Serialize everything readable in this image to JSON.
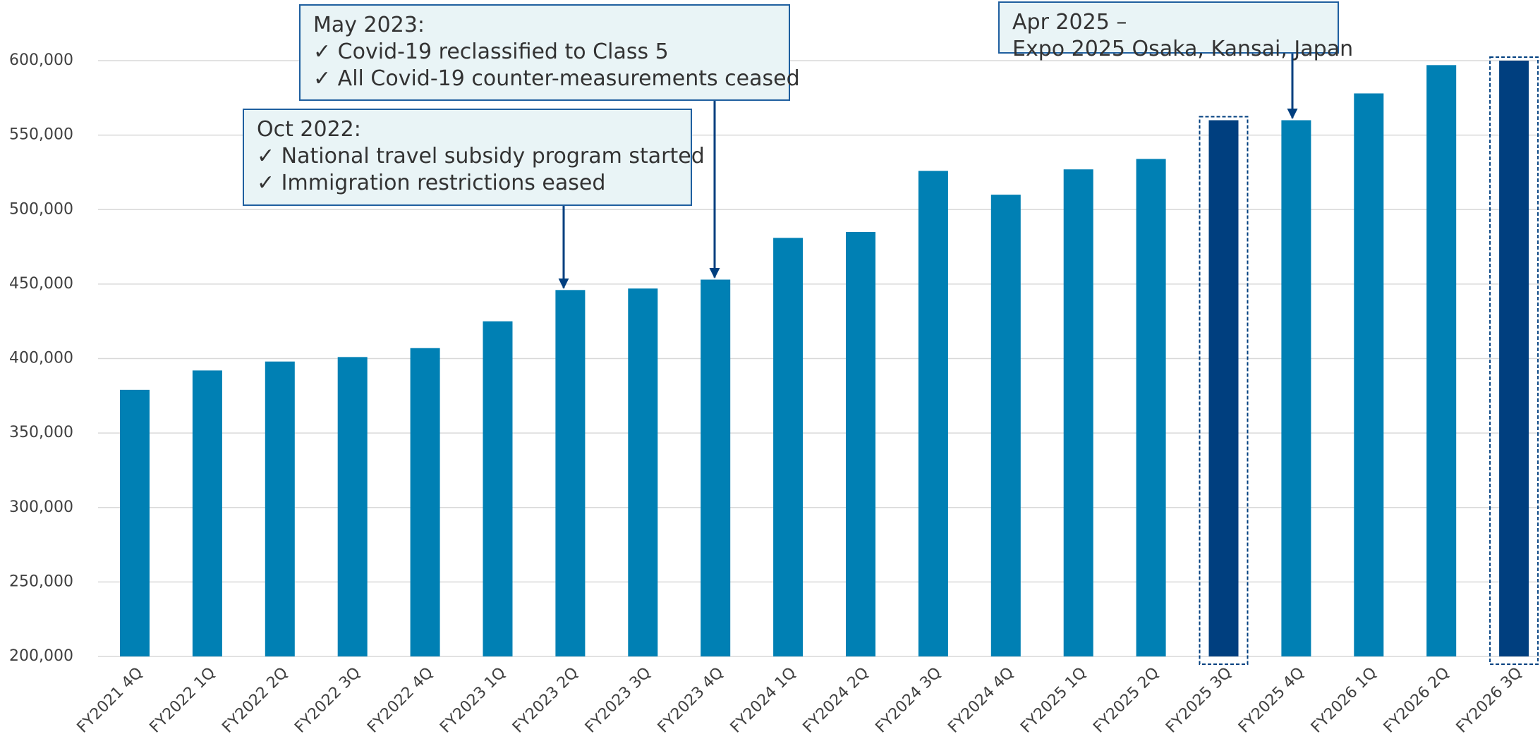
{
  "chart_data": {
    "type": "bar",
    "categories": [
      "FY2021 4Q",
      "FY2022 1Q",
      "FY2022 2Q",
      "FY2022 3Q",
      "FY2022 4Q",
      "FY2023 1Q",
      "FY2023 2Q",
      "FY2023 3Q",
      "FY2023 4Q",
      "FY2024 1Q",
      "FY2024 2Q",
      "FY2024 3Q",
      "FY2024 4Q",
      "FY2025 1Q",
      "FY2025 2Q",
      "FY2025 3Q",
      "FY2025 4Q",
      "FY2026 1Q",
      "FY2026 2Q",
      "FY2026 3Q"
    ],
    "values": [
      379000,
      392000,
      398000,
      401000,
      407000,
      425000,
      446000,
      447000,
      453000,
      481000,
      485000,
      526000,
      510000,
      527000,
      534000,
      560000,
      560000,
      578000,
      597000,
      600000
    ],
    "colors": [
      "#0080b4",
      "#0080b4",
      "#0080b4",
      "#0080b4",
      "#0080b4",
      "#0080b4",
      "#0080b4",
      "#0080b4",
      "#0080b4",
      "#0080b4",
      "#0080b4",
      "#0080b4",
      "#0080b4",
      "#0080b4",
      "#0080b4",
      "#003f7f",
      "#0080b4",
      "#0080b4",
      "#0080b4",
      "#003f7f"
    ],
    "ylim": [
      200000,
      600000
    ],
    "yticks": [
      {
        "value": 200000,
        "label": "200,000"
      },
      {
        "value": 250000,
        "label": "250,000"
      },
      {
        "value": 300000,
        "label": "300,000"
      },
      {
        "value": 350000,
        "label": "350,000"
      },
      {
        "value": 400000,
        "label": "400,000"
      },
      {
        "value": 450000,
        "label": "450,000"
      },
      {
        "value": 500000,
        "label": "500,000"
      },
      {
        "value": 550000,
        "label": "550,000"
      },
      {
        "value": 600000,
        "label": "600,000"
      }
    ],
    "grid": true,
    "annotations": [
      {
        "lines": [
          "Oct 2022:",
          "✓ National travel subsidy program started",
          "✓ Immigration restrictions eased"
        ]
      },
      {
        "lines": [
          "May 2023:",
          "✓ Covid-19 reclassified to Class 5",
          "✓ All Covid-19 counter-measurements ceased"
        ]
      },
      {
        "lines": [
          "Apr 2025 –",
          "Expo 2025 Osaka, Kansai, Japan"
        ]
      }
    ]
  }
}
